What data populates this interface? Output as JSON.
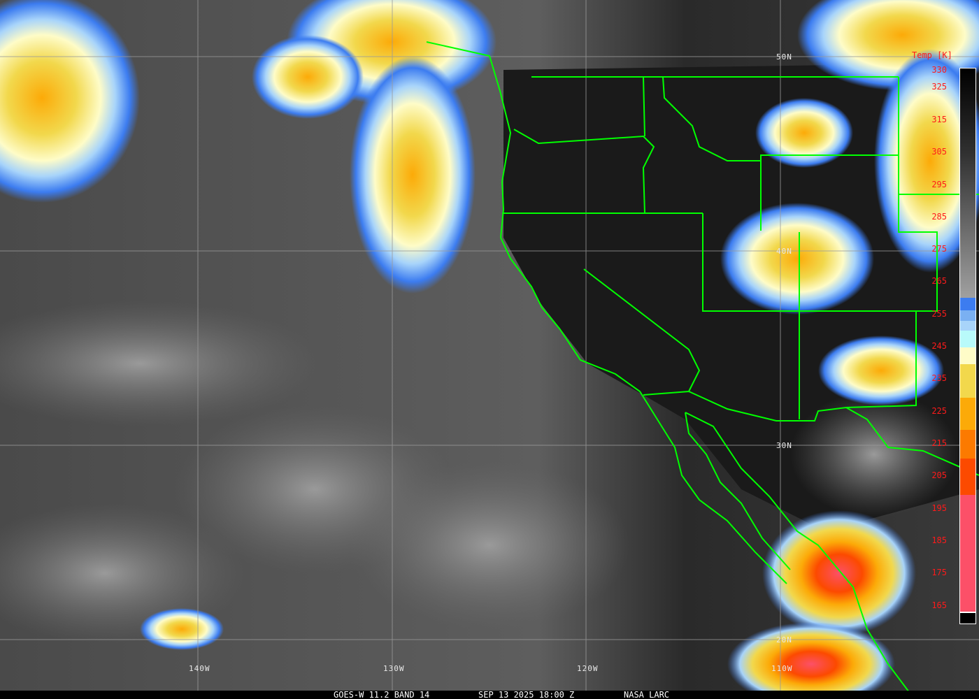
{
  "caption": {
    "satellite": "GOES-W 11.2 BAND 14",
    "datetime": "SEP 13 2025 18:00 Z",
    "source": "NASA LARC"
  },
  "latitude_labels": [
    "50N",
    "40N",
    "30N",
    "20N"
  ],
  "longitude_labels": [
    "140W",
    "130W",
    "120W",
    "110W"
  ],
  "colorbar": {
    "title": "Temp [K]",
    "ticks": [
      "330",
      "325",
      "315",
      "305",
      "295",
      "285",
      "275",
      "265",
      "255",
      "245",
      "235",
      "225",
      "215",
      "205",
      "195",
      "185",
      "175",
      "165"
    ],
    "colors": {
      "warm_top": "#000000",
      "warm_gray": "#a0a0a0",
      "blue": "#3c7cf0",
      "blue_light": "#7ab0f2",
      "light_blue": "#a8d4fa",
      "cyan": "#b8fafa",
      "pale_yellow": "#fefcc8",
      "yellow": "#f2d84c",
      "orange_yellow": "#fcaa08",
      "orange": "#fc7a00",
      "red_orange": "#fc4a00",
      "pink": "#fc5068"
    }
  },
  "overlay_color": "#00ff00"
}
